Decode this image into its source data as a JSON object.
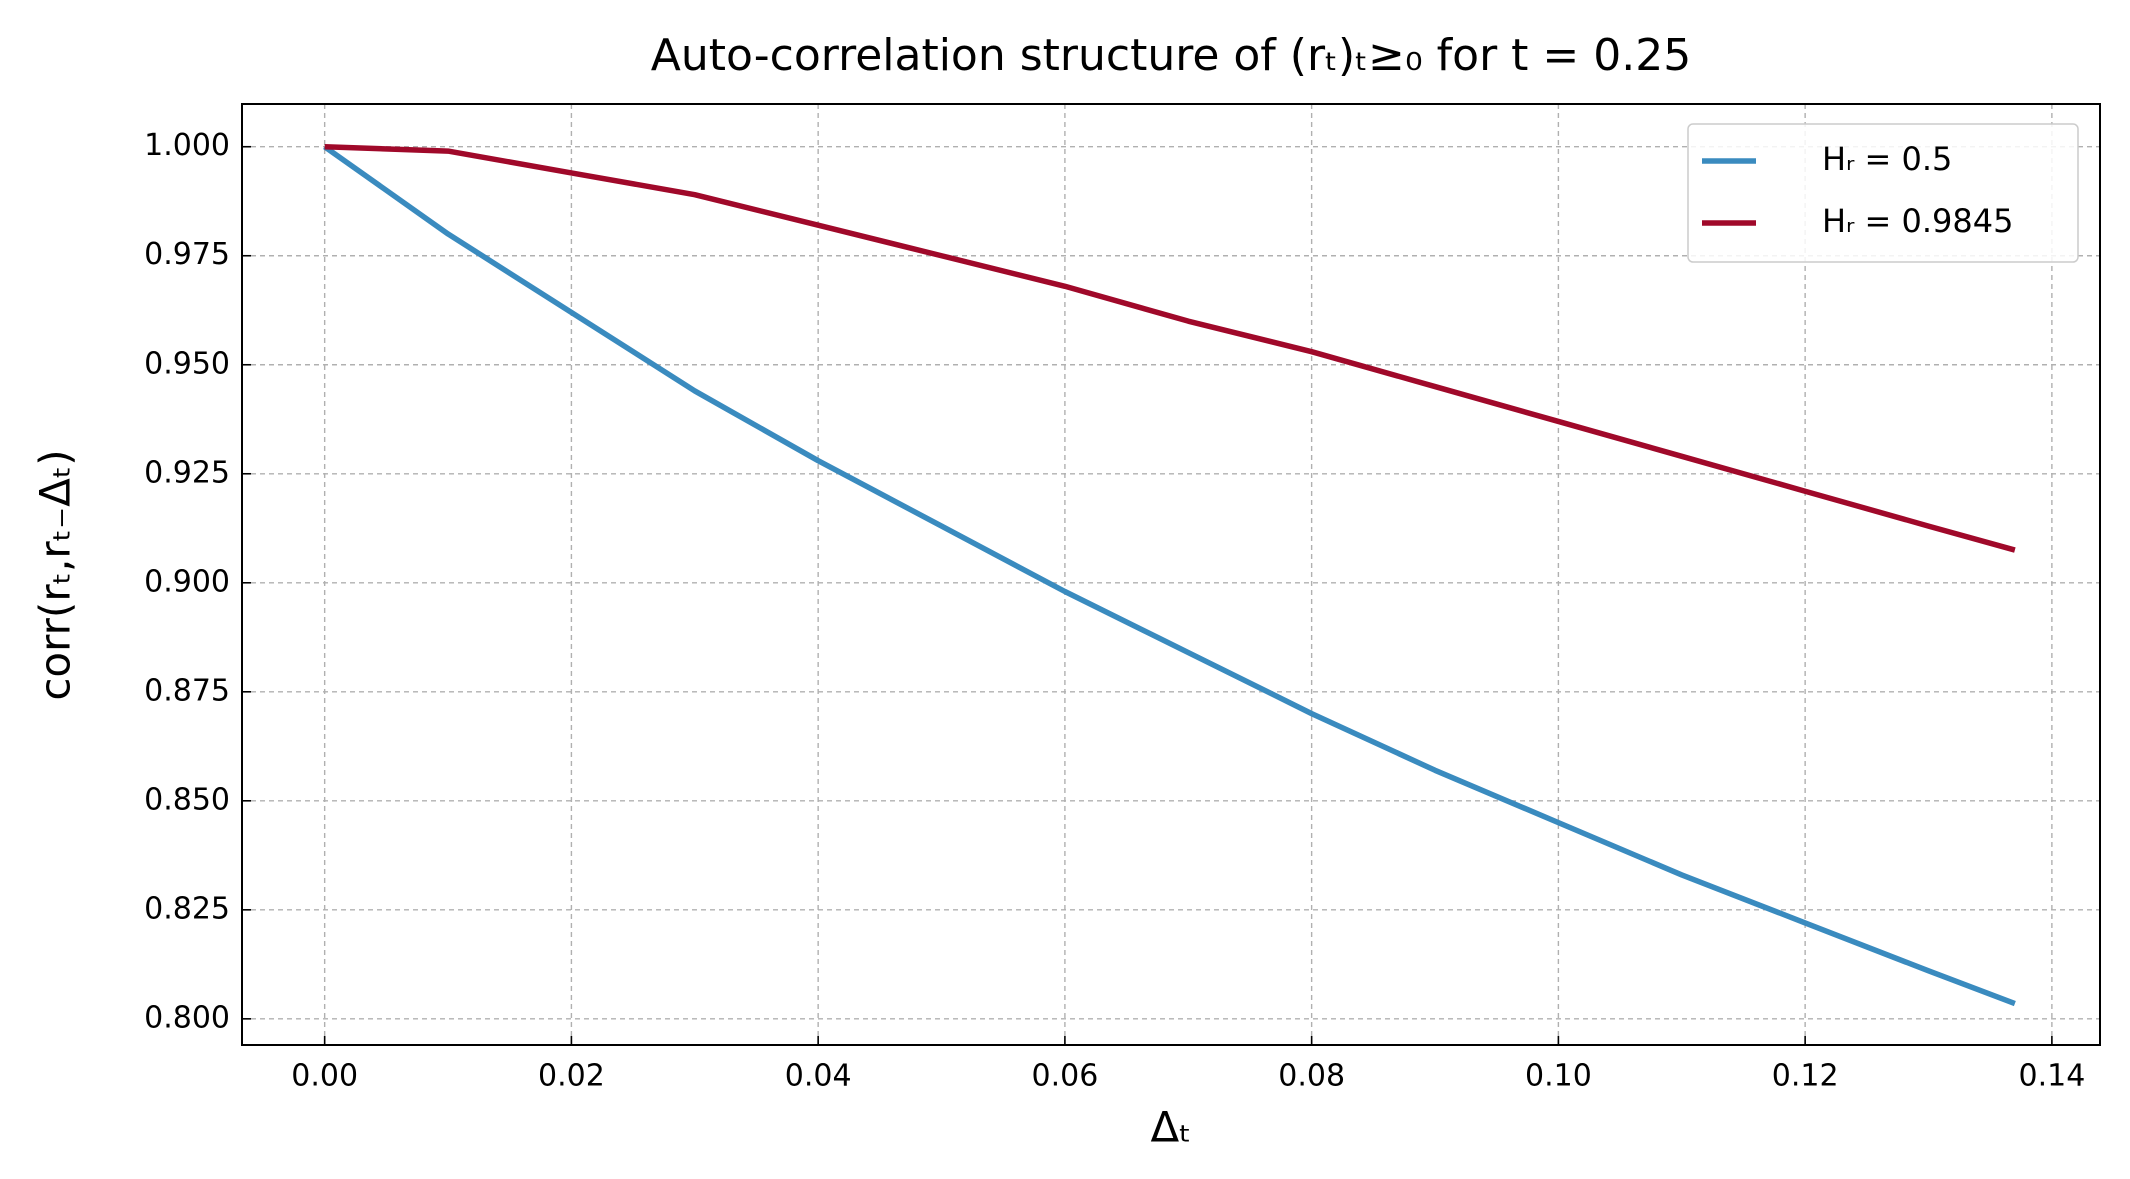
{
  "chart_data": {
    "type": "line",
    "title": "Auto-correlation structure of (rₜ)ₜ≥₀ for t = 0.25",
    "x_label": "Δₜ",
    "y_label": "corr(rₜ,rₜ₋Δₜ)",
    "x": [
      0,
      0.01,
      0.02,
      0.03,
      0.04,
      0.05,
      0.06,
      0.07,
      0.08,
      0.09,
      0.1,
      0.11,
      0.12,
      0.13,
      0.137
    ],
    "series": [
      {
        "name": "Hᵣ = 0.5",
        "color": "#3a8bbf",
        "values": [
          1.0,
          0.98,
          0.962,
          0.944,
          0.928,
          0.913,
          0.898,
          0.884,
          0.87,
          0.857,
          0.845,
          0.833,
          0.822,
          0.811,
          0.8035
        ]
      },
      {
        "name": "Hᵣ = 0.9845",
        "color": "#a0092a",
        "values": [
          1.0,
          0.999,
          0.994,
          0.989,
          0.982,
          0.975,
          0.968,
          0.96,
          0.953,
          0.945,
          0.937,
          0.929,
          0.921,
          0.913,
          0.9075
        ]
      }
    ],
    "xlim": [
      -0.0067,
      0.1439
    ],
    "ylim": [
      0.794,
      1.0098
    ],
    "xticks": [
      {
        "value": 0,
        "label": "0.00"
      },
      {
        "value": 0.02,
        "label": "0.02"
      },
      {
        "value": 0.04,
        "label": "0.04"
      },
      {
        "value": 0.06,
        "label": "0.06"
      },
      {
        "value": 0.08,
        "label": "0.08"
      },
      {
        "value": 0.1,
        "label": "0.10"
      },
      {
        "value": 0.12,
        "label": "0.12"
      },
      {
        "value": 0.14,
        "label": "0.14"
      }
    ],
    "yticks": [
      {
        "value": 0.8,
        "label": "0.800"
      },
      0.825,
      {
        "value": 0.85,
        "label": "0.850"
      },
      0.875,
      {
        "value": 0.9,
        "label": "0.900"
      },
      0.925,
      {
        "value": 0.95,
        "label": "0.950"
      },
      0.975,
      {
        "value": 1,
        "label": "1.000"
      }
    ],
    "grid": true,
    "legend": "upper right"
  }
}
